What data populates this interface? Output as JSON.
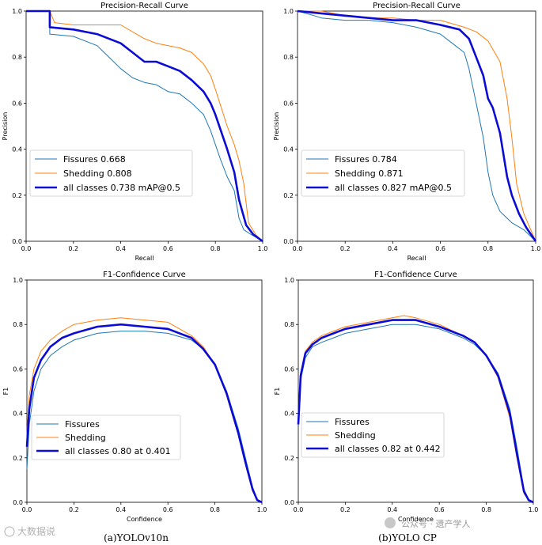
{
  "chart_data": [
    {
      "type": "line",
      "title": "Precision-Recall Curve",
      "xlabel": "Recall",
      "ylabel": "Precision",
      "xlim": [
        0,
        1
      ],
      "ylim": [
        0,
        1
      ],
      "xticks": [
        "0.0",
        "0.2",
        "0.4",
        "0.6",
        "0.8",
        "1.0"
      ],
      "yticks": [
        "0.0",
        "0.2",
        "0.4",
        "0.6",
        "0.8",
        "1.0"
      ],
      "legend_position": "lower-left",
      "series": [
        {
          "name": "Fissures",
          "label": "Fissures 0.668",
          "color": "#1f77b4",
          "x": [
            0,
            0.1,
            0.1,
            0.2,
            0.3,
            0.4,
            0.45,
            0.5,
            0.55,
            0.6,
            0.65,
            0.7,
            0.75,
            0.78,
            0.82,
            0.85,
            0.88,
            0.9,
            0.92,
            0.95,
            1.0
          ],
          "y": [
            1,
            1,
            0.9,
            0.89,
            0.85,
            0.75,
            0.71,
            0.69,
            0.68,
            0.65,
            0.64,
            0.6,
            0.55,
            0.48,
            0.36,
            0.28,
            0.22,
            0.1,
            0.05,
            0.03,
            0
          ]
        },
        {
          "name": "Shedding",
          "label": "Shedding 0.808",
          "color": "#ff7f0e",
          "x": [
            0,
            0.1,
            0.12,
            0.2,
            0.3,
            0.4,
            0.5,
            0.55,
            0.6,
            0.65,
            0.7,
            0.75,
            0.78,
            0.8,
            0.85,
            0.88,
            0.9,
            0.92,
            0.94,
            0.97,
            1.0
          ],
          "y": [
            1,
            1,
            0.95,
            0.94,
            0.94,
            0.94,
            0.88,
            0.86,
            0.85,
            0.84,
            0.82,
            0.77,
            0.72,
            0.66,
            0.5,
            0.42,
            0.35,
            0.25,
            0.08,
            0.03,
            0
          ]
        },
        {
          "name": "all classes",
          "label": "all classes 0.738 mAP@0.5",
          "color": "#0b0bd4",
          "x": [
            0,
            0.1,
            0.1,
            0.2,
            0.3,
            0.4,
            0.45,
            0.5,
            0.55,
            0.6,
            0.65,
            0.7,
            0.75,
            0.78,
            0.8,
            0.85,
            0.88,
            0.9,
            0.93,
            0.96,
            1.0
          ],
          "y": [
            1,
            1,
            0.93,
            0.92,
            0.9,
            0.86,
            0.82,
            0.78,
            0.78,
            0.76,
            0.74,
            0.7,
            0.65,
            0.6,
            0.55,
            0.4,
            0.3,
            0.18,
            0.07,
            0.03,
            0
          ]
        }
      ]
    },
    {
      "type": "line",
      "title": "Precision-Recall Curve",
      "xlabel": "Recall",
      "ylabel": "Precision",
      "xlim": [
        0,
        1
      ],
      "ylim": [
        0,
        1
      ],
      "xticks": [
        "0.0",
        "0.2",
        "0.4",
        "0.6",
        "0.8",
        "1.0"
      ],
      "yticks": [
        "0.0",
        "0.2",
        "0.4",
        "0.6",
        "0.8",
        "1.0"
      ],
      "legend_position": "lower-left",
      "series": [
        {
          "name": "Fissures",
          "label": "Fissures 0.784",
          "color": "#1f77b4",
          "x": [
            0,
            0.07,
            0.1,
            0.2,
            0.3,
            0.4,
            0.5,
            0.6,
            0.65,
            0.7,
            0.72,
            0.75,
            0.78,
            0.8,
            0.82,
            0.85,
            0.88,
            0.9,
            0.95,
            1.0
          ],
          "y": [
            1,
            0.98,
            0.97,
            0.96,
            0.96,
            0.95,
            0.93,
            0.9,
            0.86,
            0.82,
            0.75,
            0.6,
            0.45,
            0.3,
            0.2,
            0.13,
            0.1,
            0.08,
            0.05,
            0
          ]
        },
        {
          "name": "Shedding",
          "label": "Shedding 0.871",
          "color": "#ff7f0e",
          "x": [
            0,
            0.1,
            0.2,
            0.3,
            0.4,
            0.5,
            0.6,
            0.7,
            0.75,
            0.8,
            0.85,
            0.88,
            0.9,
            0.92,
            0.95,
            1.0
          ],
          "y": [
            1,
            1,
            0.98,
            0.97,
            0.97,
            0.96,
            0.96,
            0.93,
            0.91,
            0.87,
            0.78,
            0.62,
            0.45,
            0.25,
            0.12,
            0
          ]
        },
        {
          "name": "all classes",
          "label": "all classes 0.827 mAP@0.5",
          "color": "#0b0bd4",
          "x": [
            0,
            0.1,
            0.2,
            0.3,
            0.4,
            0.5,
            0.6,
            0.68,
            0.72,
            0.75,
            0.78,
            0.8,
            0.82,
            0.85,
            0.88,
            0.9,
            0.93,
            0.96,
            1.0
          ],
          "y": [
            1,
            0.99,
            0.98,
            0.97,
            0.96,
            0.96,
            0.94,
            0.92,
            0.88,
            0.8,
            0.72,
            0.62,
            0.58,
            0.47,
            0.28,
            0.2,
            0.12,
            0.06,
            0
          ]
        }
      ]
    },
    {
      "type": "line",
      "title": "F1-Confidence Curve",
      "xlabel": "Confidence",
      "ylabel": "F1",
      "xlim": [
        0,
        1
      ],
      "ylim": [
        0,
        1
      ],
      "xticks": [
        "0.0",
        "0.2",
        "0.4",
        "0.6",
        "0.8",
        "1.0"
      ],
      "yticks": [
        "0.0",
        "0.2",
        "0.4",
        "0.6",
        "0.8",
        "1.0"
      ],
      "legend_position": "lower-left",
      "series": [
        {
          "name": "Fissures",
          "label": "Fissures",
          "color": "#1f77b4",
          "x": [
            0,
            0.01,
            0.03,
            0.06,
            0.1,
            0.15,
            0.2,
            0.3,
            0.4,
            0.5,
            0.6,
            0.7,
            0.75,
            0.8,
            0.85,
            0.9,
            0.93,
            0.96,
            0.98,
            1.0
          ],
          "y": [
            0.15,
            0.35,
            0.5,
            0.6,
            0.66,
            0.7,
            0.73,
            0.76,
            0.77,
            0.77,
            0.76,
            0.73,
            0.69,
            0.62,
            0.5,
            0.33,
            0.2,
            0.07,
            0.01,
            0
          ]
        },
        {
          "name": "Shedding",
          "label": "Shedding",
          "color": "#ff7f0e",
          "x": [
            0,
            0.01,
            0.03,
            0.06,
            0.1,
            0.15,
            0.2,
            0.3,
            0.4,
            0.5,
            0.6,
            0.7,
            0.75,
            0.8,
            0.85,
            0.9,
            0.93,
            0.96,
            0.98,
            1.0
          ],
          "y": [
            0.3,
            0.48,
            0.6,
            0.68,
            0.73,
            0.77,
            0.8,
            0.82,
            0.83,
            0.82,
            0.81,
            0.75,
            0.7,
            0.62,
            0.48,
            0.3,
            0.17,
            0.05,
            0.01,
            0
          ]
        },
        {
          "name": "all classes",
          "label": "all classes 0.80 at 0.401",
          "color": "#0b0bd4",
          "x": [
            0,
            0.01,
            0.03,
            0.06,
            0.1,
            0.15,
            0.2,
            0.3,
            0.4,
            0.5,
            0.6,
            0.7,
            0.75,
            0.8,
            0.85,
            0.9,
            0.93,
            0.96,
            0.98,
            1.0
          ],
          "y": [
            0.25,
            0.42,
            0.56,
            0.64,
            0.7,
            0.74,
            0.76,
            0.79,
            0.8,
            0.79,
            0.78,
            0.74,
            0.69,
            0.62,
            0.49,
            0.31,
            0.18,
            0.06,
            0.01,
            0
          ]
        }
      ]
    },
    {
      "type": "line",
      "title": "F1-Confidence Curve",
      "xlabel": "Confidence",
      "ylabel": "F1",
      "xlim": [
        0,
        1
      ],
      "ylim": [
        0,
        1
      ],
      "xticks": [
        "0.0",
        "0.2",
        "0.4",
        "0.6",
        "0.8",
        "1.0"
      ],
      "yticks": [
        "0.0",
        "0.2",
        "0.4",
        "0.6",
        "0.8",
        "1.0"
      ],
      "legend_position": "lower-left",
      "series": [
        {
          "name": "Fissures",
          "label": "Fissures",
          "color": "#1f77b4",
          "x": [
            0,
            0.01,
            0.03,
            0.06,
            0.1,
            0.15,
            0.2,
            0.3,
            0.4,
            0.5,
            0.6,
            0.7,
            0.75,
            0.8,
            0.85,
            0.9,
            0.93,
            0.96,
            0.98,
            1.0
          ],
          "y": [
            0.35,
            0.55,
            0.65,
            0.7,
            0.72,
            0.74,
            0.76,
            0.78,
            0.8,
            0.8,
            0.78,
            0.74,
            0.71,
            0.66,
            0.58,
            0.42,
            0.25,
            0.06,
            0.01,
            0
          ]
        },
        {
          "name": "Shedding",
          "label": "Shedding",
          "color": "#ff7f0e",
          "x": [
            0,
            0.01,
            0.03,
            0.06,
            0.1,
            0.15,
            0.2,
            0.3,
            0.4,
            0.45,
            0.5,
            0.6,
            0.7,
            0.75,
            0.8,
            0.85,
            0.9,
            0.93,
            0.96,
            0.98,
            1.0
          ],
          "y": [
            0.35,
            0.58,
            0.68,
            0.72,
            0.75,
            0.77,
            0.79,
            0.81,
            0.83,
            0.84,
            0.83,
            0.8,
            0.75,
            0.72,
            0.66,
            0.56,
            0.38,
            0.2,
            0.04,
            0.01,
            0
          ]
        },
        {
          "name": "all classes",
          "label": "all classes 0.82 at 0.442",
          "color": "#0b0bd4",
          "x": [
            0,
            0.01,
            0.03,
            0.06,
            0.1,
            0.15,
            0.2,
            0.3,
            0.4,
            0.45,
            0.5,
            0.6,
            0.7,
            0.75,
            0.8,
            0.85,
            0.9,
            0.93,
            0.96,
            0.98,
            1.0
          ],
          "y": [
            0.35,
            0.57,
            0.67,
            0.71,
            0.74,
            0.76,
            0.78,
            0.8,
            0.82,
            0.82,
            0.82,
            0.79,
            0.75,
            0.72,
            0.66,
            0.57,
            0.4,
            0.22,
            0.05,
            0.01,
            0
          ]
        }
      ]
    }
  ],
  "captions": {
    "left": "(a)YOLOv10n",
    "right": "(b)YOLO CP"
  },
  "watermarks": {
    "left": "大数据说",
    "right": "公众号 · 遗产学人"
  }
}
